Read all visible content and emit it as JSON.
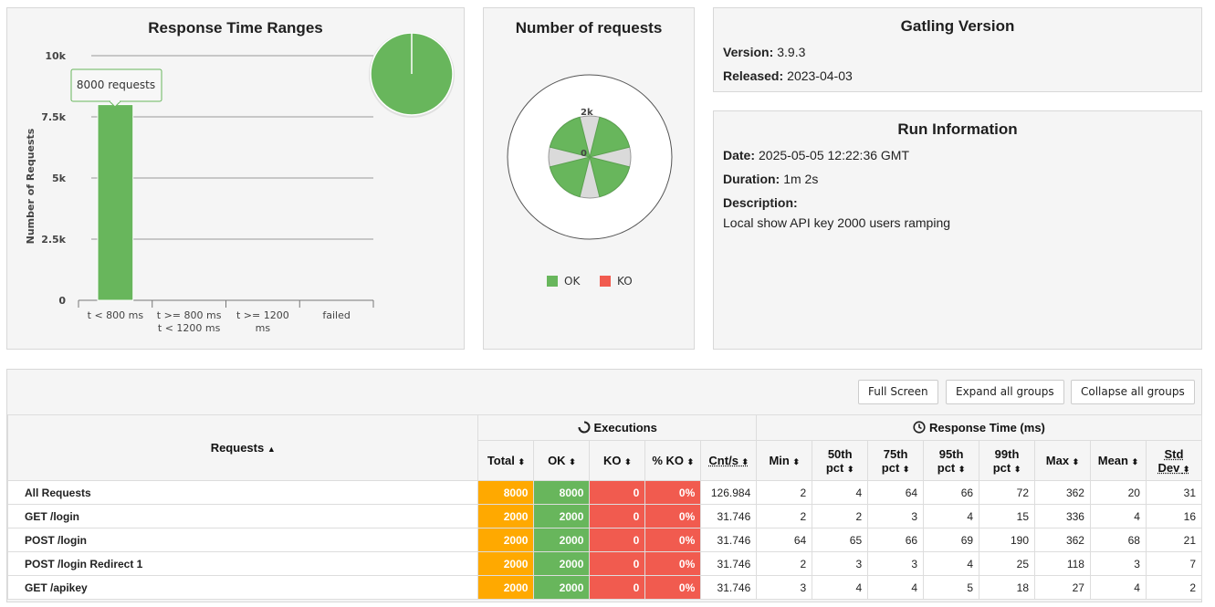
{
  "response_time_ranges": {
    "title": "Response Time Ranges",
    "ylabel": "Number of Requests",
    "yticks": [
      "10k",
      "7.5k",
      "5k",
      "2.5k",
      "0"
    ],
    "tooltip": "8000 requests",
    "categories": [
      [
        "t < 800 ms"
      ],
      [
        "t >= 800 ms",
        "t < 1200 ms"
      ],
      [
        "t >= 1200",
        "ms"
      ],
      [
        "failed"
      ]
    ],
    "pie_color": "#68b65c"
  },
  "chart_data": {
    "type": "bar",
    "title": "Response Time Ranges",
    "ylabel": "Number of Requests",
    "categories": [
      "t < 800 ms",
      "t >= 800 ms t < 1200 ms",
      "t >= 1200 ms",
      "failed"
    ],
    "values": [
      8000,
      0,
      0,
      0
    ],
    "ylim": [
      0,
      10000
    ],
    "color": "#68b65c"
  },
  "number_of_requests": {
    "title": "Number of requests",
    "tick_max": "2k",
    "tick_zero": "0",
    "legend": [
      {
        "label": "OK",
        "color": "#68b65c"
      },
      {
        "label": "KO",
        "color": "#f15b4f"
      }
    ]
  },
  "gatling_version": {
    "title": "Gatling Version",
    "version_label": "Version:",
    "version": "3.9.3",
    "released_label": "Released:",
    "released": "2023-04-03"
  },
  "run_info": {
    "title": "Run Information",
    "date_label": "Date:",
    "date": "2025-05-05 12:22:36 GMT",
    "duration_label": "Duration:",
    "duration": "1m 2s",
    "description_label": "Description:",
    "description": "Local show API key 2000 users ramping"
  },
  "buttons": {
    "full_screen": "Full Screen",
    "expand": "Expand all groups",
    "collapse": "Collapse all groups"
  },
  "table": {
    "requests_header": "Requests",
    "executions_header": "Executions",
    "response_time_header": "Response Time (ms)",
    "columns": [
      "Total",
      "OK",
      "KO",
      "% KO",
      "Cnt/s",
      "Min",
      "50th pct",
      "75th pct",
      "95th pct",
      "99th pct",
      "Max",
      "Mean",
      "Std Dev"
    ],
    "rows": [
      {
        "name": "All Requests",
        "values": [
          "8000",
          "8000",
          "0",
          "0%",
          "126.984",
          "2",
          "4",
          "64",
          "66",
          "72",
          "362",
          "20",
          "31"
        ]
      },
      {
        "name": "GET /login",
        "values": [
          "2000",
          "2000",
          "0",
          "0%",
          "31.746",
          "2",
          "2",
          "3",
          "4",
          "15",
          "336",
          "4",
          "16"
        ]
      },
      {
        "name": "POST /login",
        "values": [
          "2000",
          "2000",
          "0",
          "0%",
          "31.746",
          "64",
          "65",
          "66",
          "69",
          "190",
          "362",
          "68",
          "21"
        ]
      },
      {
        "name": "POST /login Redirect 1",
        "values": [
          "2000",
          "2000",
          "0",
          "0%",
          "31.746",
          "2",
          "3",
          "3",
          "4",
          "25",
          "118",
          "3",
          "7"
        ]
      },
      {
        "name": "GET /apikey",
        "values": [
          "2000",
          "2000",
          "0",
          "0%",
          "31.746",
          "3",
          "4",
          "4",
          "5",
          "18",
          "27",
          "4",
          "2"
        ]
      }
    ]
  }
}
